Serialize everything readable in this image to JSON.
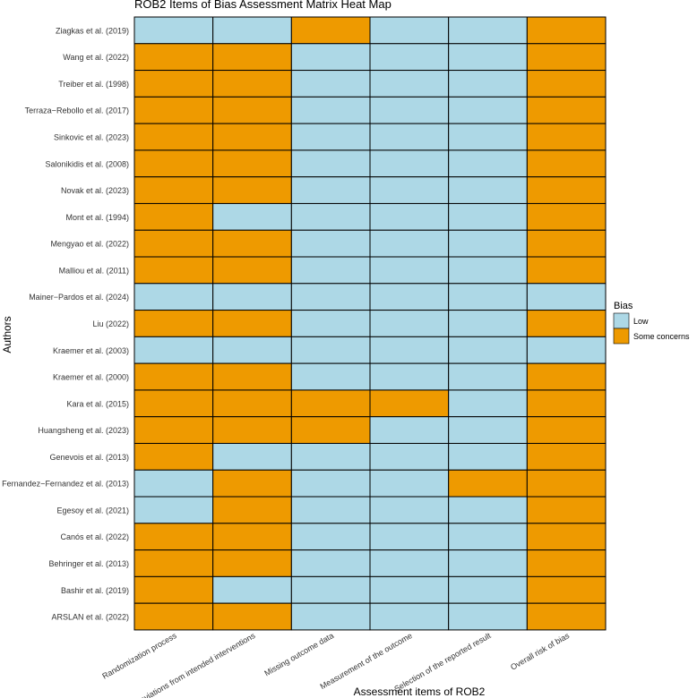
{
  "chart_data": {
    "type": "heatmap",
    "title": "ROB2 Items of Bias Assessment Matrix Heat Map",
    "xlabel": "Assessment items of ROB2",
    "ylabel": "Authors",
    "grid": false,
    "legend": {
      "title": "Bias",
      "position": "right",
      "entries": [
        {
          "key": "L",
          "label": "Low",
          "color": "#add8e6"
        },
        {
          "key": "S",
          "label": "Some concerns",
          "color": "#ee9a00"
        }
      ]
    },
    "columns": [
      "Randomization process",
      "Deviations from intended interventions",
      "Missing outcome data",
      "Measurement of the outcome",
      "Selection of the reported result",
      "Overall risk of bias"
    ],
    "rows": [
      "Ziagkas et al. (2019)",
      "Wang et al. (2022)",
      "Treiber et al. (1998)",
      "Terraza−Rebollo et al. (2017)",
      "Sinkovic et al. (2023)",
      "Salonikidis et al. (2008)",
      "Novak et al. (2023)",
      "Mont et al. (1994)",
      "Mengyao et al. (2022)",
      "Malliou et al. (2011)",
      "Mainer−Pardos et al. (2024)",
      "Liu (2022)",
      "Kraemer et al. (2003)",
      "Kraemer et al. (2000)",
      "Kara et al. (2015)",
      "Huangsheng et al. (2023)",
      "Genevois et al. (2013)",
      "Fernandez−Fernandez et al. (2013)",
      "Egesoy et al. (2021)",
      "Canós et al. (2022)",
      "Behringer et al. (2013)",
      "Bashir et al. (2019)",
      "ARSLAN et al. (2022)"
    ],
    "values": [
      [
        "L",
        "L",
        "S",
        "L",
        "L",
        "S"
      ],
      [
        "S",
        "S",
        "L",
        "L",
        "L",
        "S"
      ],
      [
        "S",
        "S",
        "L",
        "L",
        "L",
        "S"
      ],
      [
        "S",
        "S",
        "L",
        "L",
        "L",
        "S"
      ],
      [
        "S",
        "S",
        "L",
        "L",
        "L",
        "S"
      ],
      [
        "S",
        "S",
        "L",
        "L",
        "L",
        "S"
      ],
      [
        "S",
        "S",
        "L",
        "L",
        "L",
        "S"
      ],
      [
        "S",
        "L",
        "L",
        "L",
        "L",
        "S"
      ],
      [
        "S",
        "S",
        "L",
        "L",
        "L",
        "S"
      ],
      [
        "S",
        "S",
        "L",
        "L",
        "L",
        "S"
      ],
      [
        "L",
        "L",
        "L",
        "L",
        "L",
        "L"
      ],
      [
        "S",
        "S",
        "L",
        "L",
        "L",
        "S"
      ],
      [
        "L",
        "L",
        "L",
        "L",
        "L",
        "L"
      ],
      [
        "S",
        "S",
        "L",
        "L",
        "L",
        "S"
      ],
      [
        "S",
        "S",
        "S",
        "S",
        "L",
        "S"
      ],
      [
        "S",
        "S",
        "S",
        "L",
        "L",
        "S"
      ],
      [
        "S",
        "L",
        "L",
        "L",
        "L",
        "S"
      ],
      [
        "L",
        "S",
        "L",
        "L",
        "S",
        "S"
      ],
      [
        "L",
        "S",
        "L",
        "L",
        "L",
        "S"
      ],
      [
        "S",
        "S",
        "L",
        "L",
        "L",
        "S"
      ],
      [
        "S",
        "S",
        "L",
        "L",
        "L",
        "S"
      ],
      [
        "S",
        "L",
        "L",
        "L",
        "L",
        "S"
      ],
      [
        "S",
        "S",
        "L",
        "L",
        "L",
        "S"
      ]
    ]
  }
}
